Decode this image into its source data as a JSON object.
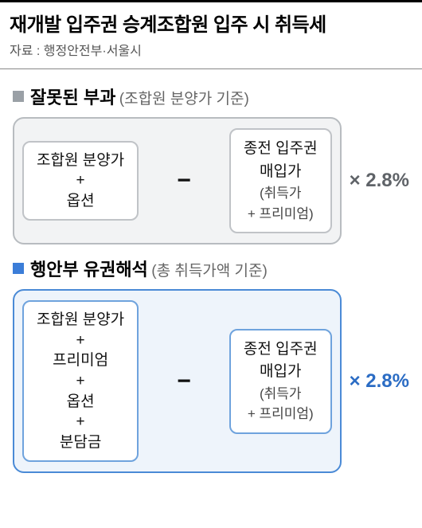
{
  "title": "재개발 입주권 승계조합원 입주 시 취득세",
  "source": "자료 : 행정안전부·서울시",
  "rate": "× 2.8%",
  "minus": "−",
  "section1": {
    "bullet_color": "#9aa0a6",
    "title": "잘못된 부과",
    "sub": "(조합원 분양가 기준)",
    "left": {
      "line1": "조합원 분양가",
      "plus1": "+",
      "line2": "옵션"
    },
    "right": {
      "line1": "종전 입주권",
      "line2": "매입가",
      "small1": "(취득가",
      "small2": "+ 프리미엄)"
    },
    "rate_color": "#5f6368"
  },
  "section2": {
    "bullet_color": "#3b7dd8",
    "title": "행안부 유권해석",
    "sub": "(총 취득가액 기준)",
    "left": {
      "line1": "조합원 분양가",
      "plus1": "+",
      "line2": "프리미엄",
      "plus2": "+",
      "line3": "옵션",
      "plus3": "+",
      "line4": "분담금"
    },
    "right": {
      "line1": "종전 입주권",
      "line2": "매입가",
      "small1": "(취득가",
      "small2": "+ 프리미엄)"
    },
    "rate_color": "#2b6cc4"
  }
}
